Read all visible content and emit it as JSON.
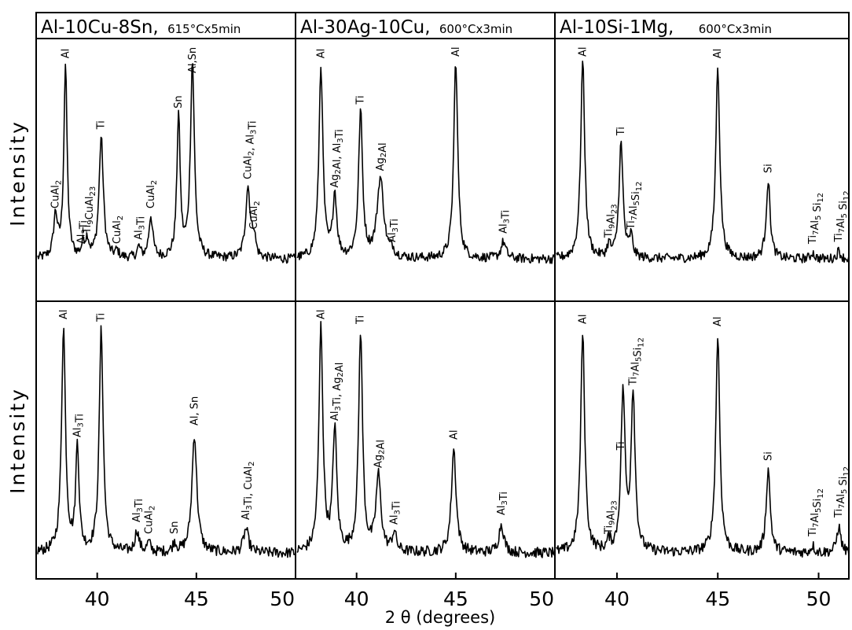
{
  "ylabel": "Intensity",
  "xlabel": "2 θ (degrees)",
  "chart_data": {
    "type": "line",
    "description_units": "x in degrees 2θ, intensity in relative units 0-100",
    "panels": [
      {
        "title": "Al-10Cu-8Sn,",
        "condition": "615°Cx5min",
        "xlim": [
          37,
          50
        ],
        "xticks": [
          "40",
          "45",
          "50"
        ],
        "xtick_values": [
          40,
          45,
          50
        ],
        "top": {
          "peaks": [
            {
              "x": 37.9,
              "h": 20,
              "w": 0.12
            },
            {
              "x": 38.4,
              "h": 92,
              "w": 0.1
            },
            {
              "x": 39.3,
              "h": 6,
              "w": 0.1
            },
            {
              "x": 39.5,
              "h": 8,
              "w": 0.1
            },
            {
              "x": 40.2,
              "h": 58,
              "w": 0.13
            },
            {
              "x": 41.0,
              "h": 3,
              "w": 0.1
            },
            {
              "x": 42.1,
              "h": 5,
              "w": 0.1
            },
            {
              "x": 42.7,
              "h": 20,
              "w": 0.12
            },
            {
              "x": 44.1,
              "h": 68,
              "w": 0.1
            },
            {
              "x": 44.8,
              "h": 94,
              "w": 0.12
            },
            {
              "x": 47.6,
              "h": 34,
              "w": 0.14
            },
            {
              "x": 47.9,
              "h": 10,
              "w": 0.1
            }
          ],
          "labels": [
            {
              "text": "CuAl2",
              "x": 37.9
            },
            {
              "text": "Al",
              "x": 38.4
            },
            {
              "text": "Al3Ti",
              "x": 39.2
            },
            {
              "text": "Ti9CuAl23",
              "x": 39.5
            },
            {
              "text": "Ti",
              "x": 40.2
            },
            {
              "text": "CuAl2",
              "x": 41.0
            },
            {
              "text": "Al3Ti",
              "x": 42.1
            },
            {
              "text": "CuAl2",
              "x": 42.7
            },
            {
              "text": "Sn",
              "x": 44.1
            },
            {
              "text": "Al,Sn",
              "x": 44.8
            },
            {
              "text": "CuAl2, Al3Ti",
              "x": 47.6
            },
            {
              "text": "CuAl2",
              "x": 47.9
            }
          ]
        },
        "bottom": {
          "peaks": [
            {
              "x": 38.3,
              "h": 95,
              "w": 0.12
            },
            {
              "x": 39.0,
              "h": 45,
              "w": 0.1
            },
            {
              "x": 40.2,
              "h": 94,
              "w": 0.12
            },
            {
              "x": 42.0,
              "h": 9,
              "w": 0.12
            },
            {
              "x": 42.6,
              "h": 4,
              "w": 0.1
            },
            {
              "x": 43.9,
              "h": 4,
              "w": 0.1
            },
            {
              "x": 44.9,
              "h": 50,
              "w": 0.15
            },
            {
              "x": 47.5,
              "h": 10,
              "w": 0.15
            }
          ],
          "labels": [
            {
              "text": "Al",
              "x": 38.3
            },
            {
              "text": "Al3Ti",
              "x": 39.0
            },
            {
              "text": "Ti",
              "x": 40.2
            },
            {
              "text": "Al3Ti",
              "x": 42.0
            },
            {
              "text": "CuAl2",
              "x": 42.6
            },
            {
              "text": "Sn",
              "x": 43.9
            },
            {
              "text": "Al, Sn",
              "x": 44.9
            },
            {
              "text": "Al3Ti, CuAl2",
              "x": 47.5
            }
          ]
        }
      },
      {
        "title": "Al-30Ag-10Cu,",
        "condition": "600°Cx3min",
        "xlim": [
          37,
          50
        ],
        "xticks": [
          "40",
          "45",
          "50"
        ],
        "xtick_values": [
          40,
          45,
          50
        ],
        "top": {
          "peaks": [
            {
              "x": 38.2,
              "h": 92,
              "w": 0.12
            },
            {
              "x": 38.9,
              "h": 30,
              "w": 0.12
            },
            {
              "x": 40.2,
              "h": 70,
              "w": 0.12
            },
            {
              "x": 41.2,
              "h": 38,
              "w": 0.2
            },
            {
              "x": 41.8,
              "h": 3,
              "w": 0.1
            },
            {
              "x": 45.0,
              "h": 95,
              "w": 0.12
            },
            {
              "x": 47.4,
              "h": 8,
              "w": 0.15
            }
          ],
          "labels": [
            {
              "text": "Al",
              "x": 38.2
            },
            {
              "text": "Ag2Al, Al3Ti",
              "x": 38.9
            },
            {
              "text": "Ti",
              "x": 40.2
            },
            {
              "text": "Ag2Al",
              "x": 41.2
            },
            {
              "text": "Al3Ti",
              "x": 41.8
            },
            {
              "text": "Al",
              "x": 45.0
            },
            {
              "text": "Al3Ti",
              "x": 47.4
            }
          ]
        },
        "bottom": {
          "peaks": [
            {
              "x": 38.2,
              "h": 95,
              "w": 0.12
            },
            {
              "x": 38.9,
              "h": 52,
              "w": 0.12
            },
            {
              "x": 40.2,
              "h": 93,
              "w": 0.12
            },
            {
              "x": 41.1,
              "h": 32,
              "w": 0.15
            },
            {
              "x": 41.9,
              "h": 8,
              "w": 0.12
            },
            {
              "x": 44.9,
              "h": 44,
              "w": 0.14
            },
            {
              "x": 47.3,
              "h": 12,
              "w": 0.15
            }
          ],
          "labels": [
            {
              "text": "Al",
              "x": 38.2
            },
            {
              "text": "Al3Ti, Ag2Al",
              "x": 38.9
            },
            {
              "text": "Ti",
              "x": 40.2
            },
            {
              "text": "Ag2Al",
              "x": 41.1
            },
            {
              "text": "Al3Ti",
              "x": 41.9
            },
            {
              "text": "Al",
              "x": 44.9
            },
            {
              "text": "Al3Ti",
              "x": 47.3
            }
          ]
        }
      },
      {
        "title": "Al-10Si-1Mg,",
        "condition": "600°Cx3min",
        "xlim": [
          37,
          51.5
        ],
        "xticks": [
          "40",
          "45",
          "50"
        ],
        "xtick_values": [
          40,
          45,
          50
        ],
        "top": {
          "peaks": [
            {
              "x": 38.3,
              "h": 95,
              "w": 0.12
            },
            {
              "x": 39.6,
              "h": 6,
              "w": 0.1
            },
            {
              "x": 40.2,
              "h": 55,
              "w": 0.12
            },
            {
              "x": 40.7,
              "h": 10,
              "w": 0.1
            },
            {
              "x": 45.0,
              "h": 92,
              "w": 0.12
            },
            {
              "x": 47.5,
              "h": 37,
              "w": 0.12
            },
            {
              "x": 49.7,
              "h": 3,
              "w": 0.1
            },
            {
              "x": 51.0,
              "h": 4,
              "w": 0.1
            }
          ],
          "labels": [
            {
              "text": "Al",
              "x": 38.3
            },
            {
              "text": "Ti9Al23",
              "x": 39.6
            },
            {
              "text": "Ti",
              "x": 40.2
            },
            {
              "text": "Ti7Al5Si12",
              "x": 40.7
            },
            {
              "text": "Al",
              "x": 45.0
            },
            {
              "text": "Si",
              "x": 47.5
            },
            {
              "text": "Ti7Al5 Si12",
              "x": 49.7
            },
            {
              "text": "Ti7Al5 Si12",
              "x": 51.0
            }
          ]
        },
        "bottom": {
          "peaks": [
            {
              "x": 38.3,
              "h": 93,
              "w": 0.12
            },
            {
              "x": 39.6,
              "h": 4,
              "w": 0.1
            },
            {
              "x": 40.3,
              "h": 67,
              "w": 0.12
            },
            {
              "x": 40.8,
              "h": 67,
              "w": 0.12
            },
            {
              "x": 45.0,
              "h": 92,
              "w": 0.12
            },
            {
              "x": 47.5,
              "h": 35,
              "w": 0.12
            },
            {
              "x": 49.7,
              "h": 3,
              "w": 0.1
            },
            {
              "x": 51.0,
              "h": 11,
              "w": 0.12
            }
          ],
          "labels": [
            {
              "text": "Al",
              "x": 38.3
            },
            {
              "text": "Ti9Al23",
              "x": 39.6
            },
            {
              "text": "Ti",
              "x": 40.2
            },
            {
              "text": "Ti7Al5Si12",
              "x": 40.8
            },
            {
              "text": "Al",
              "x": 45.0
            },
            {
              "text": "Si",
              "x": 47.5
            },
            {
              "text": "Ti7Al5Si12",
              "x": 49.7
            },
            {
              "text": "Ti7Al5 Si12",
              "x": 51.0
            }
          ]
        }
      }
    ]
  }
}
